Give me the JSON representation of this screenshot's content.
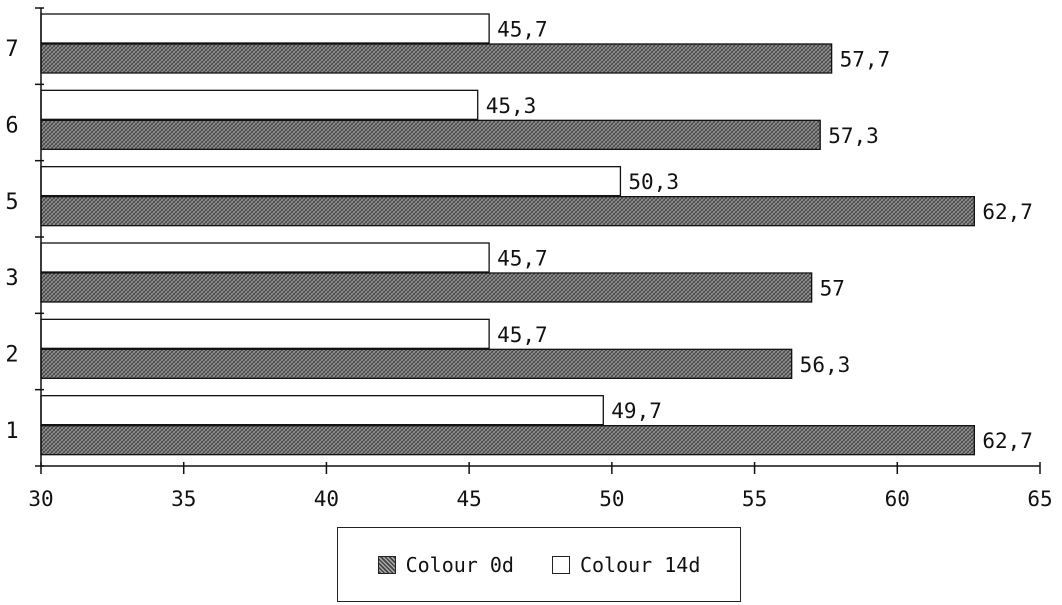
{
  "chart_data": {
    "type": "bar",
    "orientation": "horizontal",
    "categories": [
      "7",
      "6",
      "5",
      "3",
      "2",
      "1"
    ],
    "series": [
      {
        "name": "Colour 14d",
        "values": [
          45.7,
          45.3,
          50.3,
          45.7,
          45.7,
          49.7
        ],
        "labels": [
          "45,7",
          "45,3",
          "50,3",
          "45,7",
          "45,7",
          "49,7"
        ],
        "color": "#ffffff",
        "pattern": "none"
      },
      {
        "name": "Colour 0d",
        "values": [
          57.7,
          57.3,
          62.7,
          57.0,
          56.3,
          62.7
        ],
        "labels": [
          "57,7",
          "57,3",
          "62,7",
          "57",
          "56,3",
          "62,7"
        ],
        "color": "#8a8a8a",
        "pattern": "crosshatch"
      }
    ],
    "xlim": [
      30,
      65
    ],
    "xticks": [
      "30",
      "35",
      "40",
      "45",
      "50",
      "55",
      "60",
      "65"
    ],
    "title": "",
    "xlabel": "",
    "ylabel": "",
    "grid": false,
    "legend_position": "bottom-center"
  },
  "legend": [
    {
      "label": "Colour 0d",
      "color": "#8a8a8a",
      "pattern": "crosshatch"
    },
    {
      "label": "Colour 14d",
      "color": "#ffffff",
      "pattern": "none"
    }
  ]
}
